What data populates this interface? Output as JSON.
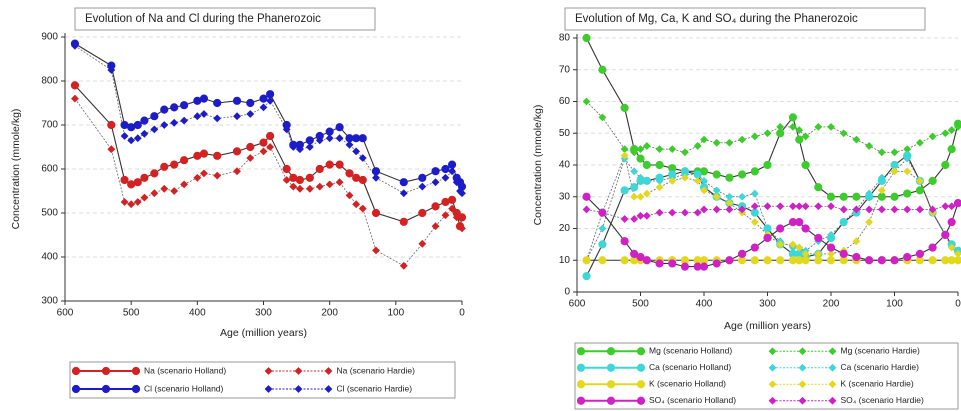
{
  "chart_data": [
    {
      "type": "line",
      "title": "Evolution of Na and Cl during the Phanerozoic",
      "x_label": "Age (million years)",
      "y_label": "Concentration (mmole/kg)",
      "xlim": [
        600,
        0
      ],
      "xticks": [
        600,
        500,
        400,
        300,
        200,
        100,
        0
      ],
      "ylim": [
        300,
        900
      ],
      "yticks": [
        300,
        400,
        500,
        600,
        700,
        800,
        900
      ],
      "grid": true,
      "x": [
        585,
        530,
        510,
        500,
        490,
        480,
        465,
        450,
        435,
        420,
        400,
        390,
        370,
        340,
        320,
        300,
        290,
        265,
        255,
        245,
        230,
        215,
        200,
        185,
        170,
        160,
        150,
        130,
        88,
        60,
        40,
        25,
        15,
        8,
        3,
        0
      ],
      "series": [
        {
          "name": "Na (scenario Holland)",
          "color": "#d42222",
          "marker": "circle",
          "values": [
            790,
            700,
            575,
            565,
            570,
            580,
            590,
            605,
            610,
            620,
            630,
            635,
            630,
            640,
            650,
            660,
            675,
            600,
            580,
            575,
            580,
            600,
            610,
            610,
            590,
            580,
            575,
            500,
            480,
            500,
            515,
            525,
            530,
            500,
            470,
            490
          ]
        },
        {
          "name": "Na (scenario Hardie)",
          "color": "#d42222",
          "marker": "diamond",
          "values": [
            760,
            645,
            525,
            520,
            525,
            535,
            545,
            555,
            550,
            565,
            580,
            590,
            585,
            595,
            625,
            640,
            650,
            575,
            560,
            555,
            555,
            560,
            565,
            570,
            540,
            520,
            510,
            415,
            380,
            430,
            470,
            495,
            510,
            490,
            470,
            465
          ]
        },
        {
          "name": "Cl (scenario Holland)",
          "color": "#1c1cc8",
          "marker": "circle",
          "values": [
            885,
            835,
            700,
            695,
            700,
            710,
            720,
            735,
            740,
            745,
            755,
            760,
            750,
            755,
            750,
            760,
            770,
            700,
            655,
            655,
            665,
            675,
            685,
            695,
            670,
            670,
            670,
            595,
            570,
            580,
            595,
            600,
            610,
            580,
            570,
            560
          ]
        },
        {
          "name": "Cl (scenario Hardie)",
          "color": "#1c1cc8",
          "marker": "diamond",
          "values": [
            880,
            825,
            675,
            665,
            670,
            680,
            690,
            700,
            705,
            710,
            720,
            725,
            715,
            720,
            725,
            740,
            755,
            690,
            650,
            645,
            650,
            665,
            670,
            670,
            655,
            640,
            625,
            580,
            545,
            560,
            570,
            580,
            595,
            570,
            550,
            545
          ]
        }
      ]
    },
    {
      "type": "line",
      "title": "Evolution of Mg, Ca, K and SO₄ during the Phanerozoic",
      "x_label": "Age (million years)",
      "y_label": "Concentration (mmole/kg)",
      "xlim": [
        600,
        0
      ],
      "xticks": [
        600,
        500,
        400,
        300,
        200,
        100,
        0
      ],
      "ylim": [
        0,
        80
      ],
      "yticks": [
        0,
        10,
        20,
        30,
        40,
        50,
        60,
        70,
        80
      ],
      "grid": true,
      "x": [
        585,
        560,
        525,
        510,
        500,
        490,
        470,
        450,
        430,
        410,
        400,
        380,
        360,
        340,
        320,
        300,
        280,
        260,
        250,
        240,
        220,
        200,
        180,
        160,
        140,
        120,
        100,
        80,
        60,
        40,
        20,
        10,
        0
      ],
      "series": [
        {
          "name": "Mg (scenario Holland)",
          "color": "#3ccc2c",
          "marker": "circle",
          "values": [
            80,
            70,
            58,
            45,
            42,
            40,
            40,
            39,
            38,
            38,
            38,
            37,
            36,
            37,
            38,
            40,
            50,
            55,
            48,
            40,
            33,
            30,
            30,
            30,
            30,
            30,
            30,
            31,
            32,
            35,
            40,
            45,
            53
          ]
        },
        {
          "name": "Mg (scenario Hardie)",
          "color": "#3ccc2c",
          "marker": "diamond",
          "values": [
            60,
            55,
            45,
            44,
            45,
            46,
            45,
            45,
            44,
            46,
            48,
            47,
            47,
            48,
            49,
            50,
            52,
            52,
            51,
            49,
            52,
            52,
            50,
            48,
            46,
            44,
            44,
            45,
            47,
            49,
            50,
            51,
            52
          ]
        },
        {
          "name": "Ca (scenario Holland)",
          "color": "#3ed6d6",
          "marker": "circle",
          "values": [
            5,
            15,
            32,
            33,
            35,
            35,
            36,
            37,
            38,
            37,
            33,
            30,
            28,
            27,
            25,
            20,
            15,
            12,
            12,
            11,
            12,
            17,
            22,
            25,
            30,
            35,
            40,
            43,
            35,
            25,
            18,
            15,
            13
          ]
        },
        {
          "name": "Ca (scenario Hardie)",
          "color": "#3ed6d6",
          "marker": "diamond",
          "values": [
            10,
            20,
            42,
            38,
            36,
            35,
            35,
            36,
            37,
            37,
            35,
            32,
            30,
            30,
            31,
            20,
            16,
            14,
            14,
            13,
            16,
            18,
            22,
            26,
            31,
            36,
            38,
            42,
            35,
            25,
            18,
            15,
            13
          ]
        },
        {
          "name": "K (scenario Holland)",
          "color": "#e2d81e",
          "marker": "circle",
          "values": [
            10,
            10,
            10,
            10,
            10,
            10,
            10,
            10,
            10,
            10,
            10,
            10,
            10,
            10,
            10,
            10,
            10,
            10,
            10,
            10,
            10,
            10,
            10,
            10,
            10,
            10,
            10,
            10,
            10,
            10,
            10,
            10,
            10
          ]
        },
        {
          "name": "K (scenario Hardie)",
          "color": "#e2d81e",
          "marker": "diamond",
          "values": [
            10,
            25,
            43,
            30,
            30,
            31,
            33,
            35,
            36,
            35,
            32,
            30,
            28,
            25,
            22,
            18,
            15,
            15,
            14,
            12,
            12,
            12,
            13,
            16,
            22,
            32,
            38,
            38,
            35,
            25,
            18,
            14,
            12
          ]
        },
        {
          "name": "SO₄ (scenario Holland)",
          "color": "#d020c6",
          "marker": "circle",
          "values": [
            30,
            25,
            16,
            12,
            11,
            10,
            9,
            9,
            8,
            8,
            8,
            9,
            10,
            12,
            14,
            17,
            20,
            22,
            22,
            20,
            17,
            14,
            12,
            11,
            10,
            10,
            10,
            11,
            12,
            14,
            18,
            22,
            28
          ]
        },
        {
          "name": "SO₄ (scenario Hardie)",
          "color": "#d020c6",
          "marker": "diamond",
          "values": [
            26,
            25,
            23,
            23,
            24,
            24,
            25,
            25,
            25,
            25,
            26,
            26,
            26,
            26,
            27,
            27,
            27,
            27,
            27,
            27,
            27,
            27,
            26,
            26,
            26,
            26,
            26,
            26,
            26,
            26,
            27,
            27,
            28
          ]
        }
      ]
    }
  ]
}
